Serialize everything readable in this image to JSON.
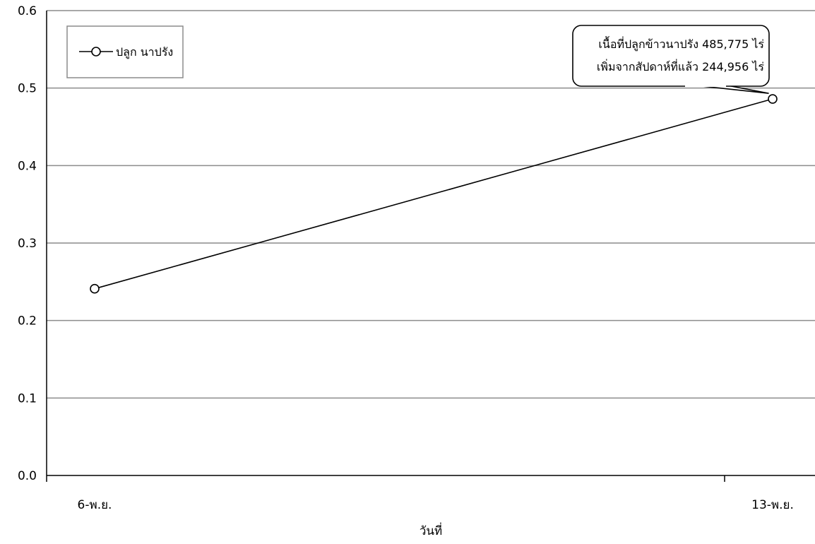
{
  "chart_data": {
    "type": "line",
    "title": "",
    "xlabel": "วันที่",
    "ylabel": "",
    "categories": [
      "6-พ.ย.",
      "13-พ.ย."
    ],
    "series": [
      {
        "name": "ปลูก นาปรัง",
        "values": [
          0.241,
          0.486
        ],
        "color": "#000000",
        "marker": "open-circle"
      }
    ],
    "ylim": [
      0,
      0.6
    ],
    "yticks": [
      "0.0",
      "0.1",
      "0.2",
      "0.3",
      "0.4",
      "0.5",
      "0.6"
    ],
    "grid": true,
    "legend_position": "top-left",
    "annotation": {
      "lines": [
        "เนื้อที่ปลูกข้าวนาปรัง 485,775  ไร่",
        "เพิ่มจากสัปดาห์ที่แล้ว 244,956 ไร่"
      ],
      "target_category": "13-พ.ย."
    }
  }
}
